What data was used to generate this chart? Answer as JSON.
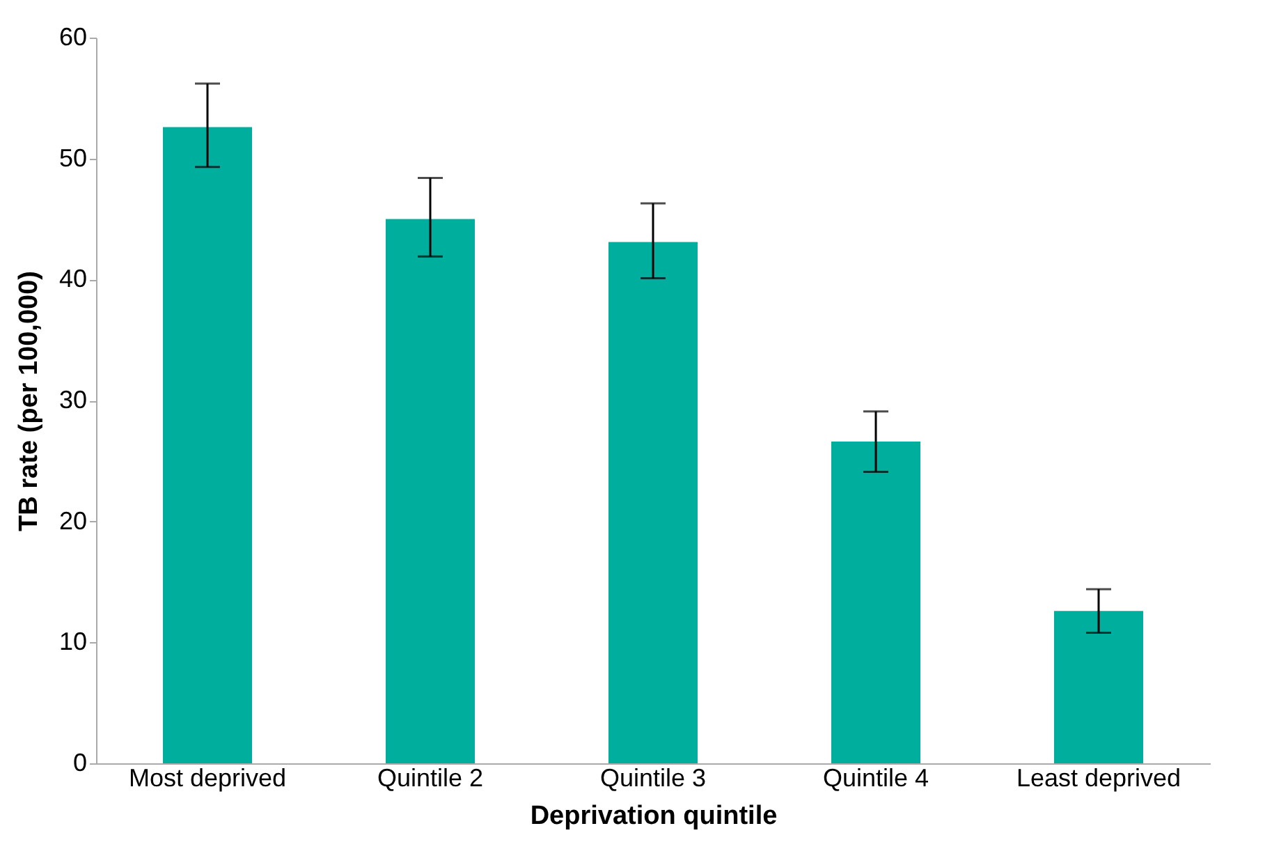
{
  "chart_data": {
    "type": "bar",
    "xlabel": "Deprivation quintile",
    "ylabel": "TB rate (per 100,000)",
    "categories": [
      "Most deprived",
      "Quintile 2",
      "Quintile 3",
      "Quintile 4",
      "Least deprived"
    ],
    "values": [
      52.6,
      45.0,
      43.1,
      26.6,
      12.6
    ],
    "errors": [
      [
        49.3,
        56.2
      ],
      [
        41.9,
        48.4
      ],
      [
        40.1,
        46.3
      ],
      [
        24.1,
        29.1
      ],
      [
        10.8,
        14.4
      ]
    ],
    "color": "#00ae9d",
    "ylim": [
      0,
      60
    ],
    "yticks": [
      0,
      10,
      20,
      30,
      40,
      50,
      60
    ],
    "grid": false
  }
}
